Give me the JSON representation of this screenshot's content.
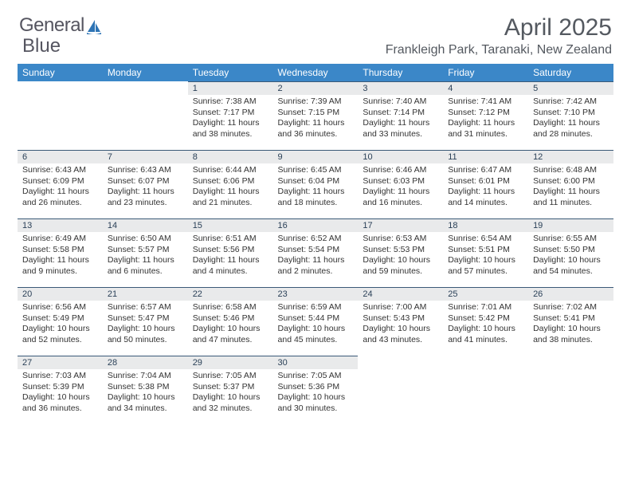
{
  "logo": {
    "word1": "General",
    "word2": "Blue",
    "sail_color": "#2e74b5",
    "text_color": "#555560"
  },
  "header": {
    "month_title": "April 2025",
    "location": "Frankleigh Park, Taranaki, New Zealand",
    "title_color": "#545960"
  },
  "calendar": {
    "header_bg": "#3b87c8",
    "header_text_color": "#ffffff",
    "daynum_bg": "#e9eaeb",
    "daynum_border": "#3b5a78",
    "weekdays": [
      "Sunday",
      "Monday",
      "Tuesday",
      "Wednesday",
      "Thursday",
      "Friday",
      "Saturday"
    ],
    "weeks": [
      [
        null,
        null,
        {
          "n": "1",
          "sunrise": "7:38 AM",
          "sunset": "7:17 PM",
          "daylight": "11 hours and 38 minutes."
        },
        {
          "n": "2",
          "sunrise": "7:39 AM",
          "sunset": "7:15 PM",
          "daylight": "11 hours and 36 minutes."
        },
        {
          "n": "3",
          "sunrise": "7:40 AM",
          "sunset": "7:14 PM",
          "daylight": "11 hours and 33 minutes."
        },
        {
          "n": "4",
          "sunrise": "7:41 AM",
          "sunset": "7:12 PM",
          "daylight": "11 hours and 31 minutes."
        },
        {
          "n": "5",
          "sunrise": "7:42 AM",
          "sunset": "7:10 PM",
          "daylight": "11 hours and 28 minutes."
        }
      ],
      [
        {
          "n": "6",
          "sunrise": "6:43 AM",
          "sunset": "6:09 PM",
          "daylight": "11 hours and 26 minutes."
        },
        {
          "n": "7",
          "sunrise": "6:43 AM",
          "sunset": "6:07 PM",
          "daylight": "11 hours and 23 minutes."
        },
        {
          "n": "8",
          "sunrise": "6:44 AM",
          "sunset": "6:06 PM",
          "daylight": "11 hours and 21 minutes."
        },
        {
          "n": "9",
          "sunrise": "6:45 AM",
          "sunset": "6:04 PM",
          "daylight": "11 hours and 18 minutes."
        },
        {
          "n": "10",
          "sunrise": "6:46 AM",
          "sunset": "6:03 PM",
          "daylight": "11 hours and 16 minutes."
        },
        {
          "n": "11",
          "sunrise": "6:47 AM",
          "sunset": "6:01 PM",
          "daylight": "11 hours and 14 minutes."
        },
        {
          "n": "12",
          "sunrise": "6:48 AM",
          "sunset": "6:00 PM",
          "daylight": "11 hours and 11 minutes."
        }
      ],
      [
        {
          "n": "13",
          "sunrise": "6:49 AM",
          "sunset": "5:58 PM",
          "daylight": "11 hours and 9 minutes."
        },
        {
          "n": "14",
          "sunrise": "6:50 AM",
          "sunset": "5:57 PM",
          "daylight": "11 hours and 6 minutes."
        },
        {
          "n": "15",
          "sunrise": "6:51 AM",
          "sunset": "5:56 PM",
          "daylight": "11 hours and 4 minutes."
        },
        {
          "n": "16",
          "sunrise": "6:52 AM",
          "sunset": "5:54 PM",
          "daylight": "11 hours and 2 minutes."
        },
        {
          "n": "17",
          "sunrise": "6:53 AM",
          "sunset": "5:53 PM",
          "daylight": "10 hours and 59 minutes."
        },
        {
          "n": "18",
          "sunrise": "6:54 AM",
          "sunset": "5:51 PM",
          "daylight": "10 hours and 57 minutes."
        },
        {
          "n": "19",
          "sunrise": "6:55 AM",
          "sunset": "5:50 PM",
          "daylight": "10 hours and 54 minutes."
        }
      ],
      [
        {
          "n": "20",
          "sunrise": "6:56 AM",
          "sunset": "5:49 PM",
          "daylight": "10 hours and 52 minutes."
        },
        {
          "n": "21",
          "sunrise": "6:57 AM",
          "sunset": "5:47 PM",
          "daylight": "10 hours and 50 minutes."
        },
        {
          "n": "22",
          "sunrise": "6:58 AM",
          "sunset": "5:46 PM",
          "daylight": "10 hours and 47 minutes."
        },
        {
          "n": "23",
          "sunrise": "6:59 AM",
          "sunset": "5:44 PM",
          "daylight": "10 hours and 45 minutes."
        },
        {
          "n": "24",
          "sunrise": "7:00 AM",
          "sunset": "5:43 PM",
          "daylight": "10 hours and 43 minutes."
        },
        {
          "n": "25",
          "sunrise": "7:01 AM",
          "sunset": "5:42 PM",
          "daylight": "10 hours and 41 minutes."
        },
        {
          "n": "26",
          "sunrise": "7:02 AM",
          "sunset": "5:41 PM",
          "daylight": "10 hours and 38 minutes."
        }
      ],
      [
        {
          "n": "27",
          "sunrise": "7:03 AM",
          "sunset": "5:39 PM",
          "daylight": "10 hours and 36 minutes."
        },
        {
          "n": "28",
          "sunrise": "7:04 AM",
          "sunset": "5:38 PM",
          "daylight": "10 hours and 34 minutes."
        },
        {
          "n": "29",
          "sunrise": "7:05 AM",
          "sunset": "5:37 PM",
          "daylight": "10 hours and 32 minutes."
        },
        {
          "n": "30",
          "sunrise": "7:05 AM",
          "sunset": "5:36 PM",
          "daylight": "10 hours and 30 minutes."
        },
        null,
        null,
        null
      ]
    ],
    "labels": {
      "sunrise": "Sunrise: ",
      "sunset": "Sunset: ",
      "daylight": "Daylight: "
    }
  }
}
